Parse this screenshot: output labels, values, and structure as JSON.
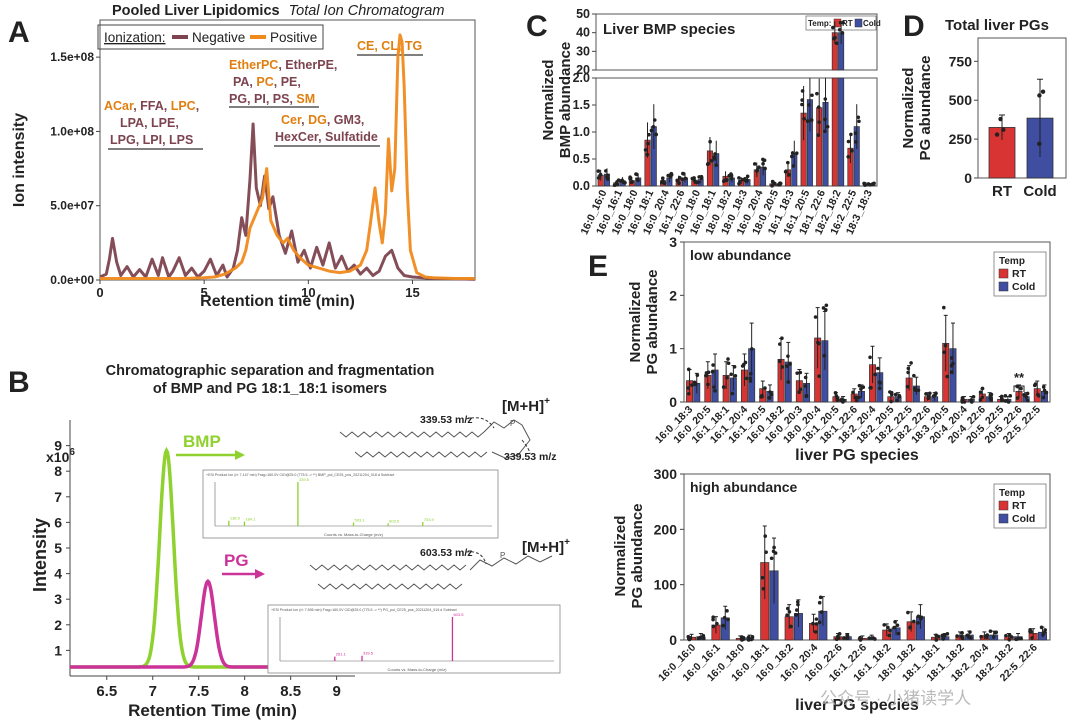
{
  "colors": {
    "negative": "#7d4450",
    "positive": "#f08a1c",
    "rt": "#d93434",
    "cold": "#3f4ea0",
    "bmp": "#8fd12e",
    "pg": "#cc3399",
    "lipid_neg": "#7d4450",
    "lipid_pos": "#e07f10"
  },
  "panel_letters": [
    "A",
    "B",
    "C",
    "D",
    "E"
  ],
  "panel_a": {
    "title_bold": "Pooled Liver Lipidomics",
    "title_italic": "Total Ion Chromatogram",
    "legend_label": "Ionization:",
    "legend_negative": "Negative",
    "legend_positive": "Positive",
    "lipid_groups": [
      {
        "lines": [
          [
            "ACar, FFA, ",
            "neg"
          ],
          [
            "LPC,",
            "pos"
          ]
        ],
        "l2": "LPA, LPE,",
        "l3": "LPG, LPI, LPS"
      },
      {
        "l1": "EtherPC, EtherPE,",
        "l2": "PA, PC, PE,",
        "l3a": "PG, PI, PS, ",
        "l3b": "SM"
      },
      {
        "l1": "Cer, DG, GM3,",
        "l2": "HexCer, Sulfatide"
      },
      {
        "l1": "CE, CL, TG"
      }
    ]
  },
  "panel_b": {
    "title_line1": "Chromatographic separation and fragmentation",
    "title_line2": "of BMP and PG 18:1_18:1 isomers",
    "y_multiplier": "x10",
    "y_exp": "6",
    "bmp_label": "BMP",
    "pg_label": "PG",
    "ion_label": "[M+H]",
    "ion_sup": "+",
    "mz_bmp": "339.53 m/z",
    "mz_pg": "603.53 m/z",
    "spec_bmp_header": "+ESI Product Ion (rt: 7.147 min) Frag=160.0V CID@25.0 (775.5 -> **) BMP_pol_CE25_pos_20211204_018.d  Subtract",
    "spec_pg_header": "+ESI Product Ion (rt: 7.596 min) Frag=160.0V CID@25.0 (775.5 -> **) PG_pol_CE25_pos_20211204_019.d  Subtract",
    "spec_x_label": "Counts vs. Mass-to-Charge (m/z)"
  },
  "panel_c": {
    "inset_title": "Liver BMP species",
    "legend_title": "Temp:",
    "legend_rt": "RT",
    "legend_cold": "Cold"
  },
  "panel_d": {
    "title": "Total liver PGs"
  },
  "panel_e": {
    "low_label": "low abundance",
    "high_label": "high abundance",
    "legend_title": "Temp",
    "legend_rt": "RT",
    "legend_cold": "Cold",
    "significance": "**"
  },
  "watermark": "公众号 · 小猪读学人",
  "chart_data": [
    {
      "id": "A",
      "type": "line",
      "title": "Pooled Liver Lipidomics Total Ion Chromatogram",
      "xlabel": "Retention time (min)",
      "ylabel": "Ion intensity",
      "xlim": [
        0,
        18
      ],
      "ylim": [
        0,
        175000000
      ],
      "xticks": [
        0,
        5,
        10,
        15
      ],
      "xtick_labels": [
        "0",
        "5",
        "10",
        "15"
      ],
      "yticks": [
        0,
        50000000,
        100000000,
        150000000
      ],
      "ytick_labels": [
        "0.0e+00",
        "5.0e+07",
        "1.0e+08",
        "1.5e+08"
      ],
      "legend": "top-left",
      "series": [
        {
          "name": "Negative",
          "x": [
            0,
            0.3,
            0.45,
            0.6,
            0.8,
            1.0,
            1.3,
            1.6,
            1.9,
            2.2,
            2.5,
            2.8,
            3.0,
            3.3,
            3.5,
            3.8,
            4.1,
            4.4,
            4.7,
            5.0,
            5.3,
            5.6,
            5.9,
            6.1,
            6.4,
            6.6,
            6.8,
            7.0,
            7.2,
            7.35,
            7.5,
            7.7,
            7.9,
            8.1,
            8.3,
            8.6,
            8.9,
            9.2,
            9.5,
            9.8,
            10.1,
            10.4,
            10.7,
            11.0,
            11.3,
            11.6,
            11.9,
            12.2,
            12.5,
            12.8,
            13.1,
            13.4,
            13.7,
            14.0,
            14.3,
            14.6,
            15.0,
            15.5,
            16.0,
            16.5,
            17.0,
            18.0
          ],
          "y": [
            2000000,
            4000000,
            14000000,
            28000000,
            12000000,
            3000000,
            9000000,
            2000000,
            7000000,
            2000000,
            14000000,
            3000000,
            15000000,
            2000000,
            6000000,
            15000000,
            3000000,
            8000000,
            2000000,
            6000000,
            14000000,
            3000000,
            10000000,
            2000000,
            8000000,
            20000000,
            42000000,
            30000000,
            68000000,
            105000000,
            62000000,
            50000000,
            70000000,
            48000000,
            56000000,
            30000000,
            18000000,
            33000000,
            12000000,
            20000000,
            8000000,
            22000000,
            10000000,
            25000000,
            8000000,
            16000000,
            6000000,
            10000000,
            4000000,
            8000000,
            3000000,
            6000000,
            16000000,
            20000000,
            8000000,
            3000000,
            2000000,
            1500000,
            1000000,
            1000000,
            800000,
            500000
          ]
        },
        {
          "name": "Positive",
          "x": [
            0,
            1.0,
            2.0,
            3.0,
            4.0,
            5.0,
            5.5,
            6.0,
            6.5,
            6.8,
            7.0,
            7.2,
            7.5,
            7.8,
            8.0,
            8.2,
            8.5,
            8.8,
            9.0,
            9.3,
            9.6,
            10.0,
            10.5,
            11.0,
            11.5,
            12.0,
            12.5,
            12.8,
            13.0,
            13.2,
            13.4,
            13.55,
            13.7,
            13.85,
            14.0,
            14.15,
            14.3,
            14.4,
            14.5,
            14.6,
            14.75,
            14.9,
            15.2,
            15.6,
            16.0,
            17.0,
            18.0
          ],
          "y": [
            1000000,
            1000000,
            1000000,
            1000000,
            1000000,
            1500000,
            2000000,
            4000000,
            8000000,
            12000000,
            20000000,
            35000000,
            45000000,
            55000000,
            75000000,
            40000000,
            30000000,
            25000000,
            28000000,
            20000000,
            15000000,
            10000000,
            8000000,
            6000000,
            5000000,
            6000000,
            10000000,
            20000000,
            40000000,
            62000000,
            38000000,
            25000000,
            45000000,
            95000000,
            60000000,
            75000000,
            150000000,
            165000000,
            160000000,
            130000000,
            60000000,
            20000000,
            5000000,
            2000000,
            1500000,
            1000000,
            1000000
          ]
        }
      ]
    },
    {
      "id": "B",
      "type": "line",
      "xlabel": "Retention Time (min)",
      "ylabel": "Intensity",
      "xlim": [
        6.1,
        9.2
      ],
      "ylim": [
        0,
        10
      ],
      "xticks": [
        6.5,
        7,
        7.5,
        8,
        8.5,
        9
      ],
      "xtick_labels": [
        "6.5",
        "7",
        "7.5",
        "8",
        "8.5",
        "9"
      ],
      "yticks": [
        1,
        2,
        3,
        4,
        5,
        6,
        7,
        8,
        9
      ],
      "ytick_labels": [
        "1",
        "2",
        "3",
        "4",
        "5",
        "6",
        "7",
        "8",
        "9"
      ],
      "series": [
        {
          "name": "BMP",
          "peak_rt": 7.15,
          "peak_height": 8.8,
          "baseline": 0.35
        },
        {
          "name": "PG",
          "peak_rt": 7.6,
          "peak_height": 3.7,
          "baseline": 0.35
        }
      ],
      "spectra": [
        {
          "name": "BMP",
          "peaks_mz": [
            140,
            185,
            339.5,
            500,
            600,
            700
          ],
          "peaks_rel": [
            0.12,
            0.1,
            1.0,
            0.08,
            0.06,
            0.09
          ],
          "labels": [
            "138.9",
            "184.1",
            "339.5",
            "503.1",
            "603.5",
            "703.9"
          ]
        },
        {
          "name": "PG",
          "peaks_mz": [
            260,
            339.5,
            603.5
          ],
          "peaks_rel": [
            0.1,
            0.12,
            1.0
          ],
          "labels": [
            "261.1",
            "339.5",
            "603.5"
          ]
        }
      ]
    },
    {
      "id": "C",
      "type": "bar",
      "title": "Liver BMP species",
      "ylabel": "Normalized BMP abundance",
      "legend": "top-right",
      "broken_axis": {
        "upper_ylim": [
          20,
          50
        ],
        "upper_ticks": [
          20,
          30,
          40,
          50
        ],
        "lower_ylim": [
          0,
          2.0
        ],
        "lower_ticks": [
          0.0,
          0.5,
          1.0,
          1.5,
          2.0
        ]
      },
      "categories": [
        "16:0_16:0",
        "16:0_16:1",
        "16:0_18:0",
        "16:0_18:1",
        "16:0_20:4",
        "16:1_22:6",
        "16:0_18:0",
        "16:0_18:1",
        "18:0_18:2",
        "18:0_18:3",
        "16:0_20:4",
        "18:0_20:5",
        "16:1_18:3",
        "16:1_20:5",
        "18:1_22:6",
        "18:2_18:2",
        "16:2_22:5",
        "18:3_18:3"
      ],
      "series": [
        {
          "name": "RT",
          "values": [
            0.2,
            0.06,
            0.1,
            0.85,
            0.1,
            0.12,
            0.1,
            0.65,
            0.18,
            0.1,
            0.3,
            0.04,
            0.3,
            1.35,
            1.45,
            40,
            0.7,
            0.03
          ]
        },
        {
          "name": "Cold",
          "values": [
            0.22,
            0.1,
            0.15,
            1.1,
            0.15,
            0.15,
            0.12,
            0.6,
            0.15,
            0.12,
            0.35,
            0.03,
            0.6,
            1.6,
            1.55,
            40,
            1.1,
            0.03
          ]
        }
      ]
    },
    {
      "id": "D",
      "type": "bar",
      "title": "Total liver PGs",
      "ylabel": "Normalized PG abundance",
      "categories": [
        "RT",
        "Cold"
      ],
      "values": [
        325,
        385
      ],
      "errors": [
        80,
        250
      ],
      "ylim": [
        0,
        900
      ],
      "yticks": [
        0,
        250,
        500,
        750
      ],
      "ytick_labels": [
        "0",
        "250",
        "500",
        "750"
      ]
    },
    {
      "id": "E-low",
      "type": "bar",
      "title": "low abundance",
      "xlabel": "liver PG species",
      "ylabel": "Normalized PG abundance",
      "legend": "top-right",
      "ylim": [
        0,
        3
      ],
      "yticks": [
        0,
        1,
        2,
        3
      ],
      "ytick_labels": [
        "0",
        "1",
        "2",
        "3"
      ],
      "categories": [
        "16:0_18:3",
        "16:0_20:5",
        "16:1_18:1",
        "16:1_20:4",
        "16:1_20:5",
        "16:0_18:2",
        "16:0_20:3",
        "18:0_20:4",
        "18:1_20:5",
        "18:1_22:6",
        "18:2_20:4",
        "18:2_20:5",
        "18:2_22:5",
        "18:2_22:6",
        "18:3_20:5",
        "20:4_20:4",
        "20:4_22:6",
        "20:5_22:5",
        "20:5_22:6",
        "22:5_22:5"
      ],
      "series": [
        {
          "name": "RT",
          "values": [
            0.4,
            0.5,
            0.5,
            0.6,
            0.25,
            0.8,
            0.4,
            1.2,
            0.1,
            0.15,
            0.7,
            0.1,
            0.45,
            0.1,
            1.1,
            0.05,
            0.15,
            0.05,
            0.2,
            0.25
          ]
        },
        {
          "name": "Cold",
          "values": [
            0.35,
            0.6,
            0.45,
            1.0,
            0.2,
            0.75,
            0.35,
            1.15,
            0.05,
            0.2,
            0.55,
            0.1,
            0.3,
            0.1,
            1.0,
            0.05,
            0.1,
            0.05,
            0.1,
            0.2
          ]
        }
      ]
    },
    {
      "id": "E-high",
      "type": "bar",
      "title": "high abundance",
      "xlabel": "liver PG species",
      "ylabel": "Normalized PG abundance",
      "legend": "top-right",
      "ylim": [
        0,
        300
      ],
      "yticks": [
        0,
        100,
        200,
        300
      ],
      "ytick_labels": [
        "0",
        "100",
        "200",
        "300"
      ],
      "categories": [
        "16:0_16:0",
        "16:0_16:1",
        "16:0_18:0",
        "16:0_18:1",
        "16:0_18:2",
        "16:0_20:4",
        "16:0_22:6",
        "16:1_22:6",
        "16:1_18:2",
        "18:0_18:2",
        "18:1_18:1",
        "18:1_18:2",
        "18:2_20:4",
        "18:2_18:2",
        "22:5_22:6"
      ],
      "series": [
        {
          "name": "RT",
          "values": [
            5,
            27,
            3,
            140,
            42,
            30,
            6,
            3,
            18,
            33,
            5,
            8,
            8,
            6,
            12
          ]
        },
        {
          "name": "Cold",
          "values": [
            6,
            40,
            4,
            125,
            48,
            52,
            6,
            4,
            22,
            42,
            6,
            9,
            9,
            6,
            14
          ]
        }
      ]
    }
  ]
}
